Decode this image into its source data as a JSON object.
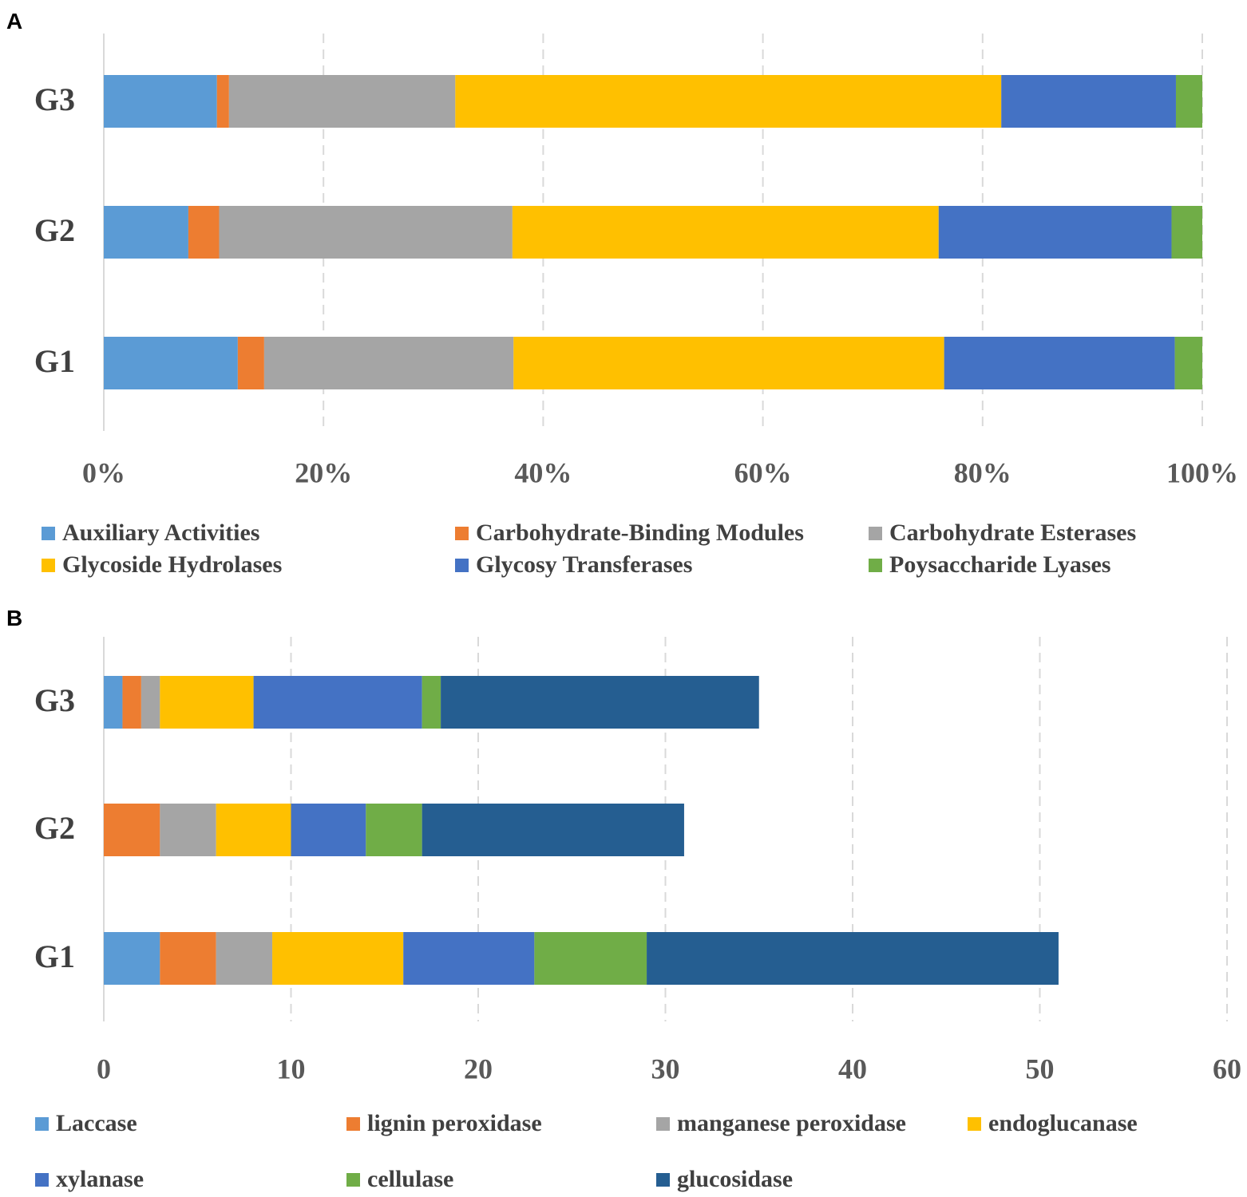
{
  "chart_data": [
    {
      "panel": "A",
      "type": "bar",
      "orientation": "horizontal",
      "stacked": "percent",
      "categories": [
        "G3",
        "G2",
        "G1"
      ],
      "series": [
        {
          "name": "Auxiliary Activities",
          "color": "#5b9bd5",
          "values": [
            10.3,
            7.7,
            12.2
          ]
        },
        {
          "name": "Carbohydrate-Binding Modules",
          "color": "#ed7d31",
          "values": [
            1.1,
            2.8,
            2.4
          ]
        },
        {
          "name": "Carbohydrate Esterases",
          "color": "#a5a5a5",
          "values": [
            20.6,
            26.7,
            22.7
          ]
        },
        {
          "name": "Glycoside Hydrolases",
          "color": "#ffc000",
          "values": [
            49.7,
            38.8,
            39.2
          ]
        },
        {
          "name": "Glycosy Transferases",
          "color": "#4472c4",
          "values": [
            15.9,
            21.2,
            21.0
          ]
        },
        {
          "name": "Poysaccharide Lyases",
          "color": "#70ad47",
          "values": [
            2.4,
            2.8,
            2.5
          ]
        }
      ],
      "xlim": [
        0,
        100
      ],
      "xticks": [
        "0%",
        "20%",
        "40%",
        "60%",
        "80%",
        "100%"
      ],
      "legend_position": "bottom"
    },
    {
      "panel": "B",
      "type": "bar",
      "orientation": "horizontal",
      "stacked": "absolute",
      "categories": [
        "G3",
        "G2",
        "G1"
      ],
      "series": [
        {
          "name": "Laccase",
          "color": "#5b9bd5",
          "values": [
            1,
            0,
            3
          ]
        },
        {
          "name": "lignin peroxidase",
          "color": "#ed7d31",
          "values": [
            1,
            3,
            3
          ]
        },
        {
          "name": "manganese peroxidase",
          "color": "#a5a5a5",
          "values": [
            1,
            3,
            3
          ]
        },
        {
          "name": "endoglucanase",
          "color": "#ffc000",
          "values": [
            5,
            4,
            7
          ]
        },
        {
          "name": "xylanase",
          "color": "#4472c4",
          "values": [
            9,
            4,
            7
          ]
        },
        {
          "name": "cellulase",
          "color": "#70ad47",
          "values": [
            1,
            3,
            6
          ]
        },
        {
          "name": "glucosidase",
          "color": "#255e91",
          "values": [
            17,
            14,
            22
          ]
        }
      ],
      "xlim": [
        0,
        60
      ],
      "xticks": [
        "0",
        "10",
        "20",
        "30",
        "40",
        "50",
        "60"
      ],
      "legend_position": "bottom"
    }
  ]
}
